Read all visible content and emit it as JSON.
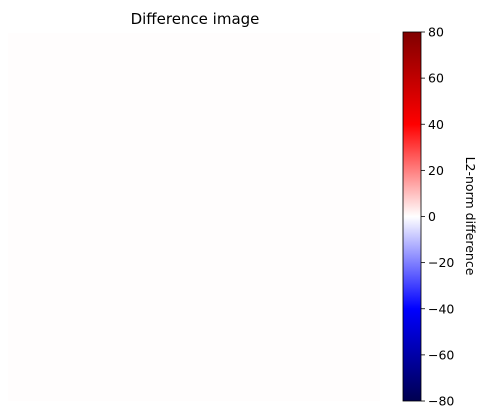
{
  "chart_data": {
    "type": "heatmap",
    "title": "Difference image",
    "xlabel": "",
    "ylabel": "",
    "axes_visible": false,
    "image_value": 0.5,
    "image_color": "#fffdfd",
    "colorbar": {
      "label": "L2-norm difference",
      "colormap": "seismic",
      "vmin": -80,
      "vmax": 80,
      "ticks": [
        80,
        60,
        40,
        20,
        0,
        -20,
        -40,
        -60,
        -80
      ],
      "tick_labels": [
        "80",
        "60",
        "40",
        "20",
        "0",
        "−20",
        "−40",
        "−60",
        "−80"
      ],
      "stops": [
        {
          "offset": 0,
          "color": "#800000"
        },
        {
          "offset": 0.25,
          "color": "#ff0000"
        },
        {
          "offset": 0.5,
          "color": "#ffffff"
        },
        {
          "offset": 0.75,
          "color": "#0000ff"
        },
        {
          "offset": 1,
          "color": "#000050"
        }
      ]
    }
  }
}
